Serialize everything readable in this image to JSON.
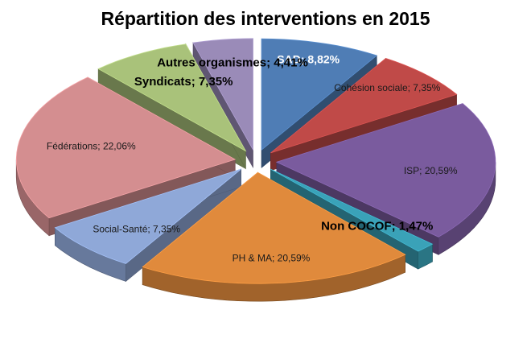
{
  "chart_data": {
    "type": "pie",
    "style": "3d-exploded",
    "title": "Répartition des interventions en 2015",
    "slices": [
      {
        "name": "SAD",
        "label": "SAD; 8,82%",
        "value": 8.82,
        "color": "#4f7db5"
      },
      {
        "name": "Cohésion sociale",
        "label": "Cohésion sociale; 7,35%",
        "value": 7.35,
        "color": "#c04a48"
      },
      {
        "name": "ISP",
        "label": "ISP; 20,59%",
        "value": 20.59,
        "color": "#7a5b9e"
      },
      {
        "name": "Non COCOF",
        "label": "Non COCOF; 1,47%",
        "value": 1.47,
        "color": "#3aa2b8"
      },
      {
        "name": "PH & MA",
        "label": "PH & MA; 20,59%",
        "value": 20.59,
        "color": "#e08a3c"
      },
      {
        "name": "Social-Santé",
        "label": "Social-Santé; 7,35%",
        "value": 7.35,
        "color": "#8fa8d8"
      },
      {
        "name": "Fédérations",
        "label": "Fédérations; 22,06%",
        "value": 22.06,
        "color": "#d48e90"
      },
      {
        "name": "Syndicats",
        "label": "Syndicats; 7,35%",
        "value": 7.35,
        "color": "#a9c27a"
      },
      {
        "name": "Autres organismes",
        "label": "Autres organismes; 4,41%",
        "value": 4.41,
        "color": "#9a8bb8"
      }
    ]
  }
}
